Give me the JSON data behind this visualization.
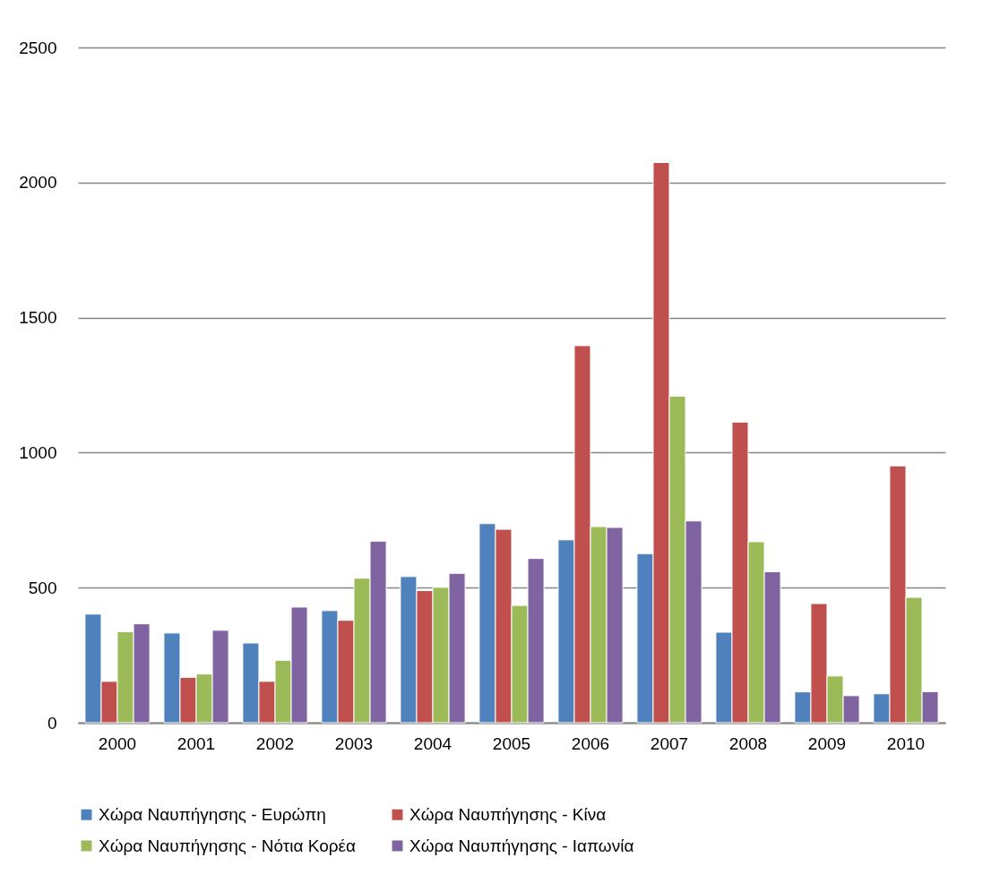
{
  "chart_data": {
    "type": "bar",
    "categories": [
      "2000",
      "2001",
      "2002",
      "2003",
      "2004",
      "2005",
      "2006",
      "2007",
      "2008",
      "2009",
      "2010"
    ],
    "series": [
      {
        "name": "Χώρα Ναυπήγησης - Ευρώπη",
        "color": "#4f81bd",
        "values": [
          402,
          332,
          295,
          415,
          541,
          737,
          677,
          626,
          335,
          114,
          107
        ]
      },
      {
        "name": "Χώρα Ναυπήγησης  - Κίνα",
        "color": "#c0504d",
        "values": [
          153,
          168,
          153,
          379,
          489,
          716,
          1396,
          2074,
          1113,
          441,
          951
        ]
      },
      {
        "name": "Χώρα Ναυπήγησης  - Νότια Κορέα",
        "color": "#9bbb59",
        "values": [
          337,
          180,
          231,
          535,
          501,
          434,
          726,
          1209,
          670,
          173,
          464
        ]
      },
      {
        "name": "Χώρα Ναυπήγησης  - Ιαπωνία",
        "color": "#8064a2",
        "values": [
          366,
          342,
          428,
          672,
          553,
          608,
          723,
          747,
          559,
          100,
          115
        ]
      }
    ],
    "ylim": [
      0,
      2500
    ],
    "yticks": [
      0,
      500,
      1000,
      1500,
      2000,
      2500
    ],
    "grid": "y",
    "legend": "bottom"
  }
}
